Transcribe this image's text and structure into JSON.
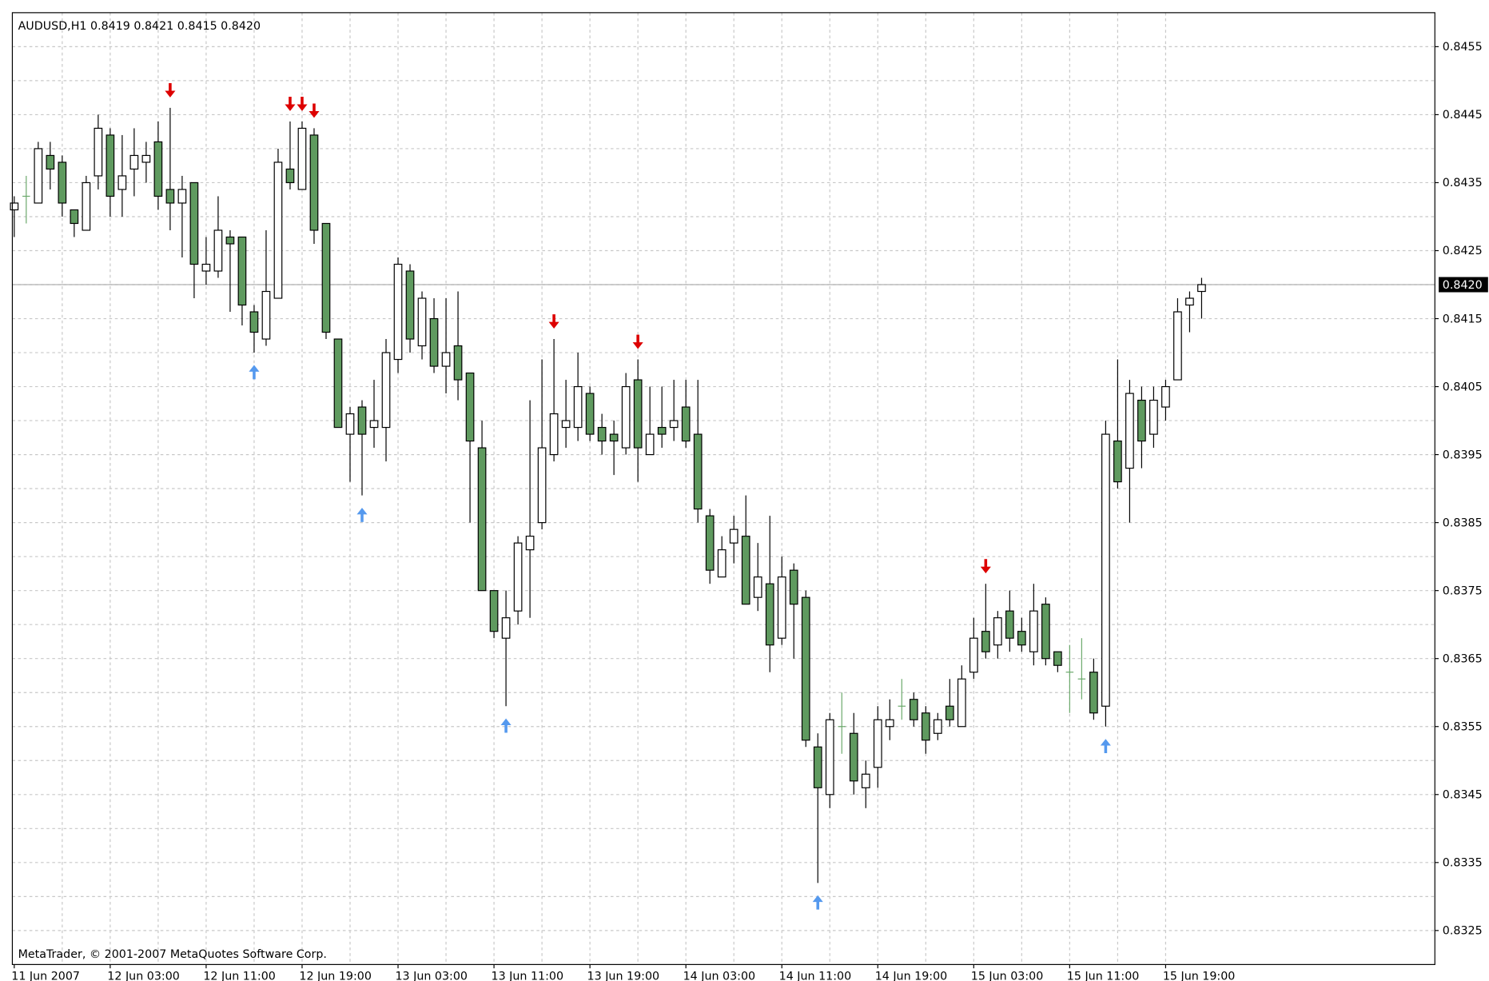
{
  "chart_data": {
    "type": "candlestick",
    "title": "AUDUSD,H1  0.8419 0.8421 0.8415 0.8420",
    "footer": "MetaTrader, © 2001-2007 MetaQuotes Software Corp.",
    "categories": [
      "11 Jun 2007",
      null,
      null,
      null,
      null,
      null,
      null,
      null,
      "12 Jun 03:00",
      null,
      null,
      null,
      null,
      null,
      null,
      null,
      "12 Jun 11:00",
      null,
      null,
      null,
      null,
      null,
      null,
      null,
      "12 Jun 19:00",
      null,
      null,
      null,
      null,
      null,
      null,
      null,
      "13 Jun 03:00",
      null,
      null,
      null,
      null,
      null,
      null,
      null,
      "13 Jun 11:00",
      null,
      null,
      null,
      null,
      null,
      null,
      null,
      "13 Jun 19:00",
      null,
      null,
      null,
      null,
      null,
      null,
      null,
      "14 Jun 03:00",
      null,
      null,
      null,
      null,
      null,
      null,
      null,
      "14 Jun 11:00",
      null,
      null,
      null,
      null,
      null,
      null,
      null,
      "14 Jun 19:00",
      null,
      null,
      null,
      null,
      null,
      null,
      null,
      "15 Jun 03:00",
      null,
      null,
      null,
      null,
      null,
      null,
      null,
      "15 Jun 11:00",
      null,
      null,
      null,
      null,
      null,
      null,
      null,
      "15 Jun 19:00",
      null,
      null,
      null
    ],
    "open": [
      0.8431,
      0.8433,
      0.8432,
      0.8439,
      0.8438,
      0.8431,
      0.8428,
      0.8436,
      0.8442,
      0.8434,
      0.8437,
      0.8438,
      0.8441,
      0.8434,
      0.8432,
      0.8435,
      0.8422,
      0.8422,
      0.8427,
      0.8427,
      0.8416,
      0.8412,
      0.8418,
      0.8437,
      0.8434,
      0.8442,
      0.8429,
      0.8412,
      0.8398,
      0.8402,
      0.8399,
      0.8399,
      0.8409,
      0.8422,
      0.8411,
      0.8415,
      0.8408,
      0.8411,
      0.8407,
      0.8396,
      0.8375,
      0.8368,
      0.8372,
      0.8381,
      0.8385,
      0.8395,
      0.8399,
      0.8399,
      0.8404,
      0.8399,
      0.8398,
      0.8396,
      0.8406,
      0.8395,
      0.8399,
      0.8399,
      0.8402,
      0.8398,
      0.8386,
      0.8377,
      0.8382,
      0.8383,
      0.8374,
      0.8376,
      0.8368,
      0.8378,
      0.8374,
      0.8352,
      0.8345,
      0.8355,
      0.8354,
      0.8346,
      0.8349,
      0.8355,
      0.8358,
      0.8359,
      0.8357,
      0.8354,
      0.8358,
      0.8355,
      0.8363,
      0.8369,
      0.8367,
      0.8372,
      0.8369,
      0.8366,
      0.8373,
      0.8366,
      0.8363,
      0.8362,
      0.8363,
      0.8358,
      0.8397,
      0.8393,
      0.8403,
      0.8398,
      0.8402,
      0.8406,
      0.8417,
      0.8419
    ],
    "high": [
      0.8433,
      0.8436,
      0.8441,
      0.8441,
      0.8439,
      0.8431,
      0.8436,
      0.8445,
      0.8443,
      0.8442,
      0.8443,
      0.8441,
      0.8444,
      0.8446,
      0.8436,
      0.8435,
      0.8427,
      0.8433,
      0.8428,
      0.8427,
      0.8417,
      0.8428,
      0.844,
      0.8444,
      0.8444,
      0.8443,
      0.8429,
      0.8412,
      0.8402,
      0.8403,
      0.8406,
      0.8412,
      0.8424,
      0.8423,
      0.8419,
      0.8418,
      0.8418,
      0.8419,
      0.8407,
      0.84,
      0.8375,
      0.8375,
      0.8383,
      0.8403,
      0.8409,
      0.8412,
      0.8406,
      0.841,
      0.8405,
      0.8401,
      0.84,
      0.8407,
      0.8409,
      0.8405,
      0.8405,
      0.8406,
      0.8406,
      0.8406,
      0.8387,
      0.8383,
      0.8386,
      0.8389,
      0.8382,
      0.8386,
      0.838,
      0.8379,
      0.8375,
      0.8354,
      0.8357,
      0.836,
      0.8357,
      0.835,
      0.8358,
      0.8359,
      0.8362,
      0.836,
      0.8358,
      0.8357,
      0.8362,
      0.8364,
      0.8371,
      0.8376,
      0.8372,
      0.8375,
      0.8371,
      0.8376,
      0.8374,
      0.8366,
      0.8367,
      0.8368,
      0.8365,
      0.84,
      0.8409,
      0.8406,
      0.8405,
      0.8405,
      0.8406,
      0.8418,
      0.8419,
      0.8421
    ],
    "low": [
      0.8427,
      0.8429,
      0.8432,
      0.8434,
      0.843,
      0.8427,
      0.8428,
      0.8434,
      0.843,
      0.843,
      0.8433,
      0.8435,
      0.8431,
      0.8428,
      0.8424,
      0.8418,
      0.842,
      0.8421,
      0.8416,
      0.8414,
      0.841,
      0.8411,
      0.8418,
      0.8434,
      0.8434,
      0.8426,
      0.8412,
      0.8399,
      0.8391,
      0.8389,
      0.8396,
      0.8394,
      0.8407,
      0.841,
      0.8409,
      0.8407,
      0.8404,
      0.8403,
      0.8385,
      0.8375,
      0.8368,
      0.8358,
      0.837,
      0.8371,
      0.8384,
      0.8394,
      0.8396,
      0.8397,
      0.8397,
      0.8395,
      0.8392,
      0.8395,
      0.8391,
      0.8395,
      0.8396,
      0.8397,
      0.8396,
      0.8385,
      0.8376,
      0.8377,
      0.8379,
      0.8373,
      0.8372,
      0.8363,
      0.8367,
      0.8365,
      0.8352,
      0.8332,
      0.8343,
      0.8351,
      0.8345,
      0.8343,
      0.8346,
      0.8353,
      0.8356,
      0.8355,
      0.8351,
      0.8353,
      0.8355,
      0.8355,
      0.8362,
      0.8365,
      0.8365,
      0.8366,
      0.8366,
      0.8364,
      0.8364,
      0.8363,
      0.8357,
      0.8359,
      0.8356,
      0.8355,
      0.839,
      0.8385,
      0.8393,
      0.8396,
      0.84,
      0.8406,
      0.8413,
      0.8415
    ],
    "close": [
      0.8432,
      0.8433,
      0.844,
      0.8437,
      0.8432,
      0.8429,
      0.8435,
      0.8443,
      0.8433,
      0.8436,
      0.8439,
      0.8439,
      0.8433,
      0.8432,
      0.8434,
      0.8423,
      0.8423,
      0.8428,
      0.8426,
      0.8417,
      0.8413,
      0.8419,
      0.8438,
      0.8435,
      0.8443,
      0.8428,
      0.8413,
      0.8399,
      0.8401,
      0.8398,
      0.84,
      0.841,
      0.8423,
      0.8412,
      0.8418,
      0.8408,
      0.841,
      0.8406,
      0.8397,
      0.8375,
      0.8369,
      0.8371,
      0.8382,
      0.8383,
      0.8396,
      0.8401,
      0.84,
      0.8405,
      0.8398,
      0.8397,
      0.8397,
      0.8405,
      0.8396,
      0.8398,
      0.8398,
      0.84,
      0.8397,
      0.8387,
      0.8378,
      0.8381,
      0.8384,
      0.8373,
      0.8377,
      0.8367,
      0.8377,
      0.8373,
      0.8353,
      0.8346,
      0.8356,
      0.8355,
      0.8347,
      0.8348,
      0.8356,
      0.8356,
      0.8358,
      0.8356,
      0.8353,
      0.8356,
      0.8356,
      0.8362,
      0.8368,
      0.8366,
      0.8371,
      0.8368,
      0.8367,
      0.8372,
      0.8365,
      0.8364,
      0.8363,
      0.8362,
      0.8357,
      0.8398,
      0.8391,
      0.8404,
      0.8397,
      0.8403,
      0.8405,
      0.8416,
      0.8418,
      0.842
    ],
    "up_color": "#ffffff",
    "down_color": "#5f9a5f",
    "doji_color": "#6aa86a",
    "ylim": [
      0.832,
      0.846
    ],
    "yticks": [
      0.8325,
      0.8335,
      0.8345,
      0.8355,
      0.8365,
      0.8375,
      0.8385,
      0.8395,
      0.8405,
      0.8415,
      0.8425,
      0.8435,
      0.8445,
      0.8455
    ],
    "grid": true,
    "current_price": {
      "value": 0.842,
      "label": "0.8420"
    },
    "signals": [
      {
        "index": 13,
        "direction": "down"
      },
      {
        "index": 23,
        "direction": "down"
      },
      {
        "index": 24,
        "direction": "down"
      },
      {
        "index": 25,
        "direction": "down"
      },
      {
        "index": 45,
        "direction": "down"
      },
      {
        "index": 52,
        "direction": "down"
      },
      {
        "index": 81,
        "direction": "down"
      },
      {
        "index": 20,
        "direction": "up"
      },
      {
        "index": 29,
        "direction": "up"
      },
      {
        "index": 41,
        "direction": "up"
      },
      {
        "index": 67,
        "direction": "up"
      },
      {
        "index": 91,
        "direction": "up"
      }
    ],
    "signal_colors": {
      "down": "#dd0000",
      "up": "#5599ee"
    }
  }
}
